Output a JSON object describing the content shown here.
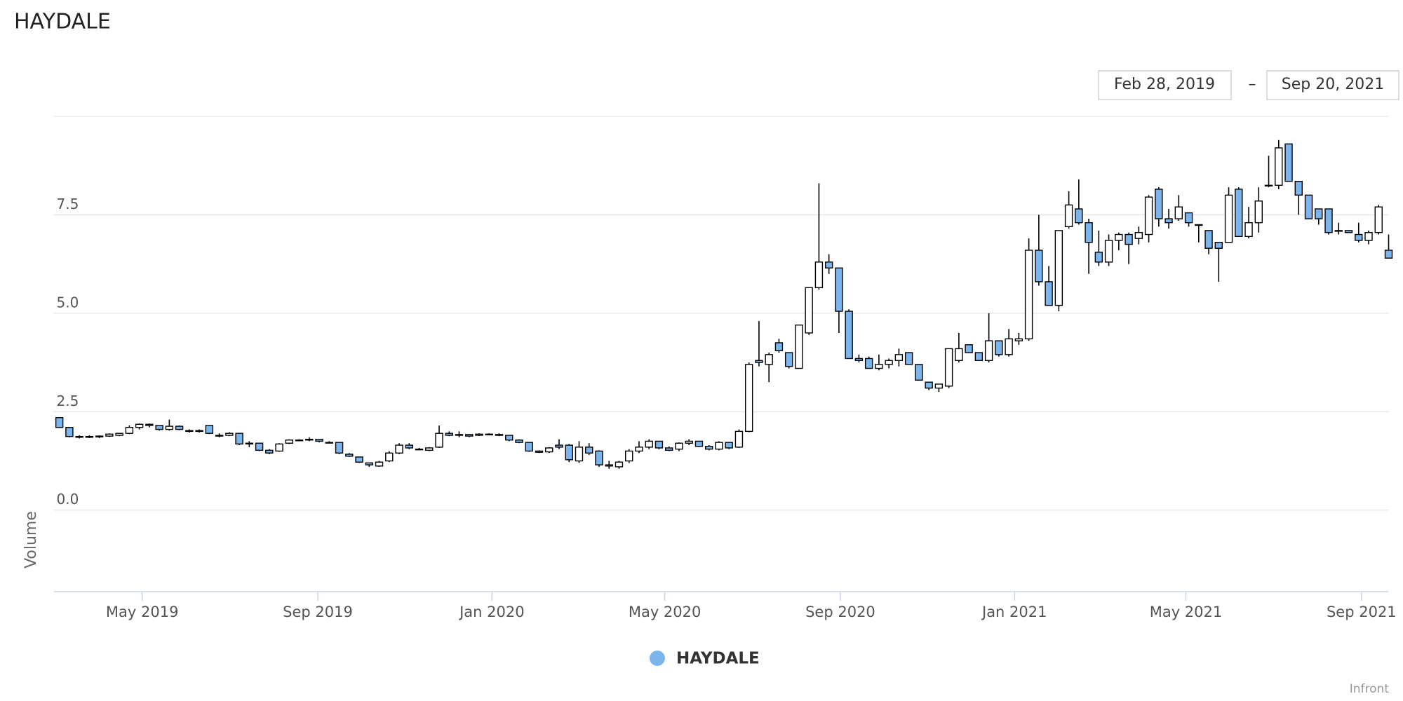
{
  "header": {
    "title": "HAYDALE"
  },
  "range_selector": {
    "from": "Feb 28, 2019",
    "separator": "–",
    "to": "Sep 20, 2021"
  },
  "credits": "Infront",
  "chart_data": {
    "type": "candlestick",
    "y_label": "Volume",
    "xlim": [
      "2019-02-28",
      "2021-09-20"
    ],
    "xticks": [
      {
        "value": "2019-05",
        "label": "May 2019"
      },
      {
        "value": "2019-09",
        "label": "Sep 2019"
      },
      {
        "value": "2020-01",
        "label": "Jan 2020"
      },
      {
        "value": "2020-05",
        "label": "May 2020"
      },
      {
        "value": "2020-09",
        "label": "Sep 2020"
      },
      {
        "value": "2021-01",
        "label": "Jan 2021"
      },
      {
        "value": "2021-05",
        "label": "May 2021"
      },
      {
        "value": "2021-09",
        "label": "Sep 2021"
      }
    ],
    "ylim": [
      -2.07,
      10
    ],
    "yticks": [
      {
        "value": 0,
        "label": "0.0"
      },
      {
        "value": 2.5,
        "label": "2.5"
      },
      {
        "value": 5,
        "label": "5.0"
      },
      {
        "value": 7.5,
        "label": "7.5"
      }
    ],
    "grid": true,
    "legend": "bottom",
    "series": [
      {
        "name": "HAYDALE",
        "color": "#7cb5ec",
        "up_color": "#ffffff",
        "x": [
          "2019-03-04",
          "2019-03-11",
          "2019-03-18",
          "2019-03-25",
          "2019-04-01",
          "2019-04-08",
          "2019-04-15",
          "2019-04-22",
          "2019-04-29",
          "2019-05-06",
          "2019-05-13",
          "2019-05-20",
          "2019-05-27",
          "2019-06-03",
          "2019-06-10",
          "2019-06-17",
          "2019-06-24",
          "2019-07-01",
          "2019-07-08",
          "2019-07-15",
          "2019-07-22",
          "2019-07-29",
          "2019-08-05",
          "2019-08-12",
          "2019-08-19",
          "2019-08-26",
          "2019-09-02",
          "2019-09-09",
          "2019-09-16",
          "2019-09-23",
          "2019-09-30",
          "2019-10-07",
          "2019-10-14",
          "2019-10-21",
          "2019-10-28",
          "2019-11-04",
          "2019-11-11",
          "2019-11-18",
          "2019-11-25",
          "2019-12-02",
          "2019-12-09",
          "2019-12-16",
          "2019-12-23",
          "2019-12-30",
          "2020-01-06",
          "2020-01-13",
          "2020-01-20",
          "2020-01-27",
          "2020-02-03",
          "2020-02-10",
          "2020-02-17",
          "2020-02-24",
          "2020-03-02",
          "2020-03-09",
          "2020-03-16",
          "2020-03-23",
          "2020-03-30",
          "2020-04-06",
          "2020-04-13",
          "2020-04-20",
          "2020-04-27",
          "2020-05-04",
          "2020-05-11",
          "2020-05-18",
          "2020-05-25",
          "2020-06-01",
          "2020-06-08",
          "2020-06-15",
          "2020-06-22",
          "2020-06-29",
          "2020-07-06",
          "2020-07-13",
          "2020-07-20",
          "2020-07-27",
          "2020-08-03",
          "2020-08-10",
          "2020-08-17",
          "2020-08-24",
          "2020-08-31",
          "2020-09-07",
          "2020-09-14",
          "2020-09-21",
          "2020-09-28",
          "2020-10-05",
          "2020-10-12",
          "2020-10-19",
          "2020-10-26",
          "2020-11-02",
          "2020-11-09",
          "2020-11-16",
          "2020-11-23",
          "2020-11-30",
          "2020-12-07",
          "2020-12-14",
          "2020-12-21",
          "2020-12-28",
          "2021-01-04",
          "2021-01-11",
          "2021-01-18",
          "2021-01-25",
          "2021-02-01",
          "2021-02-08",
          "2021-02-15",
          "2021-02-22",
          "2021-03-01",
          "2021-03-08",
          "2021-03-15",
          "2021-03-22",
          "2021-03-29",
          "2021-04-05",
          "2021-04-12",
          "2021-04-19",
          "2021-04-26",
          "2021-05-03",
          "2021-05-10",
          "2021-05-17",
          "2021-05-24",
          "2021-05-31",
          "2021-06-07",
          "2021-06-14",
          "2021-06-21",
          "2021-06-28",
          "2021-07-05",
          "2021-07-12",
          "2021-07-19",
          "2021-07-26",
          "2021-08-02",
          "2021-08-09",
          "2021-08-16",
          "2021-08-23",
          "2021-08-30",
          "2021-09-06",
          "2021-09-13",
          "2021-09-20"
        ],
        "open": [
          2.35,
          2.1,
          1.87,
          1.85,
          1.86,
          1.88,
          1.9,
          1.95,
          2.1,
          2.18,
          2.15,
          2.05,
          2.13,
          2.0,
          2.0,
          2.15,
          1.88,
          1.9,
          1.95,
          1.68,
          1.7,
          1.52,
          1.5,
          1.7,
          1.78,
          1.78,
          1.8,
          1.72,
          1.72,
          1.42,
          1.35,
          1.2,
          1.12,
          1.25,
          1.45,
          1.65,
          1.55,
          1.52,
          1.6,
          1.95,
          1.9,
          1.92,
          1.9,
          1.93,
          1.92,
          1.9,
          1.78,
          1.72,
          1.5,
          1.48,
          1.65,
          1.65,
          1.25,
          1.6,
          1.5,
          1.15,
          1.1,
          1.25,
          1.5,
          1.6,
          1.75,
          1.58,
          1.55,
          1.7,
          1.75,
          1.62,
          1.55,
          1.72,
          1.6,
          2.0,
          3.8,
          3.7,
          4.25,
          4.0,
          3.6,
          4.5,
          5.65,
          6.3,
          6.15,
          5.05,
          3.85,
          3.85,
          3.6,
          3.7,
          3.8,
          4.0,
          3.7,
          3.25,
          3.1,
          3.15,
          3.8,
          4.2,
          4.0,
          3.8,
          4.3,
          3.95,
          4.3,
          4.35,
          6.6,
          5.8,
          5.2,
          7.2,
          7.65,
          7.3,
          6.55,
          6.3,
          6.85,
          7.0,
          6.9,
          7.0,
          8.15,
          7.4,
          7.4,
          7.55,
          7.25,
          7.1,
          6.8,
          6.8,
          8.15,
          6.95,
          7.3,
          8.25,
          8.25,
          9.3,
          8.35,
          8.0,
          7.65,
          7.65,
          7.1,
          7.1,
          7.0,
          6.85,
          7.05,
          6.6
        ],
        "high": [
          2.35,
          2.1,
          1.9,
          1.9,
          1.9,
          1.95,
          1.95,
          2.15,
          2.2,
          2.2,
          2.15,
          2.3,
          2.15,
          2.05,
          2.05,
          2.15,
          1.95,
          1.98,
          1.95,
          1.75,
          1.7,
          1.55,
          1.7,
          1.8,
          1.8,
          1.85,
          1.8,
          1.75,
          1.72,
          1.45,
          1.35,
          1.2,
          1.25,
          1.5,
          1.7,
          1.7,
          1.58,
          1.6,
          2.15,
          2.0,
          2.0,
          1.93,
          1.95,
          1.95,
          1.95,
          1.9,
          1.8,
          1.72,
          1.52,
          1.6,
          1.8,
          1.68,
          1.75,
          1.7,
          1.52,
          1.25,
          1.25,
          1.55,
          1.75,
          1.8,
          1.75,
          1.62,
          1.72,
          1.8,
          1.75,
          1.65,
          1.75,
          1.72,
          2.05,
          3.75,
          4.8,
          4.0,
          4.35,
          4.0,
          4.7,
          5.65,
          8.3,
          6.5,
          6.15,
          5.1,
          3.95,
          3.9,
          3.95,
          3.85,
          4.1,
          4.0,
          3.7,
          3.25,
          3.2,
          4.1,
          4.5,
          4.2,
          4.0,
          5.0,
          4.3,
          4.6,
          4.5,
          6.9,
          7.5,
          6.2,
          7.1,
          8.1,
          8.4,
          7.4,
          7.1,
          7.0,
          7.05,
          7.05,
          7.2,
          8.0,
          8.2,
          7.65,
          8.0,
          7.55,
          7.25,
          7.1,
          6.8,
          8.2,
          8.2,
          7.7,
          8.2,
          9.0,
          9.4,
          9.3,
          8.35,
          8.0,
          7.65,
          7.65,
          7.3,
          7.1,
          7.3,
          7.1,
          7.75,
          7.0
        ],
        "low": [
          2.1,
          1.85,
          1.82,
          1.83,
          1.83,
          1.86,
          1.88,
          1.93,
          2.05,
          2.1,
          2.02,
          2.02,
          2.03,
          1.97,
          1.97,
          1.93,
          1.85,
          1.88,
          1.65,
          1.6,
          1.5,
          1.42,
          1.48,
          1.68,
          1.75,
          1.75,
          1.72,
          1.7,
          1.42,
          1.35,
          1.2,
          1.1,
          1.1,
          1.22,
          1.42,
          1.55,
          1.52,
          1.5,
          1.58,
          1.88,
          1.85,
          1.85,
          1.88,
          1.9,
          1.88,
          1.75,
          1.7,
          1.48,
          1.45,
          1.45,
          1.55,
          1.22,
          1.2,
          1.4,
          1.1,
          1.05,
          1.05,
          1.2,
          1.45,
          1.55,
          1.55,
          1.5,
          1.5,
          1.65,
          1.6,
          1.52,
          1.52,
          1.55,
          1.58,
          1.98,
          3.65,
          3.25,
          4.0,
          3.6,
          3.6,
          4.45,
          5.6,
          6.0,
          4.5,
          3.85,
          3.75,
          3.6,
          3.55,
          3.6,
          3.65,
          3.7,
          3.3,
          3.05,
          3.0,
          3.1,
          3.75,
          4.0,
          3.8,
          3.75,
          3.9,
          3.9,
          4.2,
          4.3,
          5.7,
          5.2,
          5.05,
          7.15,
          7.25,
          6.0,
          6.2,
          6.2,
          6.6,
          6.25,
          6.75,
          6.8,
          7.2,
          7.15,
          7.35,
          7.2,
          6.8,
          6.5,
          5.8,
          6.8,
          6.95,
          6.9,
          7.05,
          8.2,
          8.15,
          8.35,
          7.5,
          7.4,
          7.25,
          7.0,
          7.0,
          7.05,
          6.8,
          6.75,
          7.0,
          6.4
        ],
        "close": [
          2.1,
          1.87,
          1.85,
          1.87,
          1.88,
          1.93,
          1.95,
          2.1,
          2.18,
          2.15,
          2.05,
          2.13,
          2.05,
          2.02,
          2.02,
          1.95,
          1.9,
          1.95,
          1.68,
          1.7,
          1.52,
          1.45,
          1.68,
          1.78,
          1.78,
          1.8,
          1.75,
          1.72,
          1.45,
          1.37,
          1.22,
          1.15,
          1.22,
          1.45,
          1.65,
          1.58,
          1.55,
          1.58,
          1.95,
          1.9,
          1.92,
          1.88,
          1.93,
          1.92,
          1.9,
          1.78,
          1.72,
          1.5,
          1.47,
          1.58,
          1.6,
          1.28,
          1.6,
          1.45,
          1.15,
          1.12,
          1.22,
          1.5,
          1.6,
          1.75,
          1.58,
          1.52,
          1.7,
          1.75,
          1.62,
          1.55,
          1.72,
          1.58,
          2.0,
          3.7,
          3.75,
          3.95,
          4.05,
          3.65,
          4.7,
          5.65,
          6.3,
          6.15,
          5.05,
          3.85,
          3.8,
          3.6,
          3.7,
          3.8,
          3.95,
          3.7,
          3.3,
          3.1,
          3.2,
          4.1,
          4.1,
          4.0,
          3.8,
          4.3,
          3.95,
          4.35,
          4.35,
          6.6,
          5.8,
          5.2,
          7.1,
          7.75,
          7.3,
          6.8,
          6.3,
          6.85,
          7.0,
          6.75,
          7.05,
          7.95,
          7.4,
          7.3,
          7.7,
          7.3,
          7.25,
          6.65,
          6.65,
          8.0,
          6.95,
          7.3,
          7.85,
          8.25,
          9.2,
          8.35,
          8.0,
          7.4,
          7.4,
          7.05,
          7.1,
          7.05,
          6.85,
          7.05,
          7.7,
          6.4
        ]
      }
    ]
  }
}
